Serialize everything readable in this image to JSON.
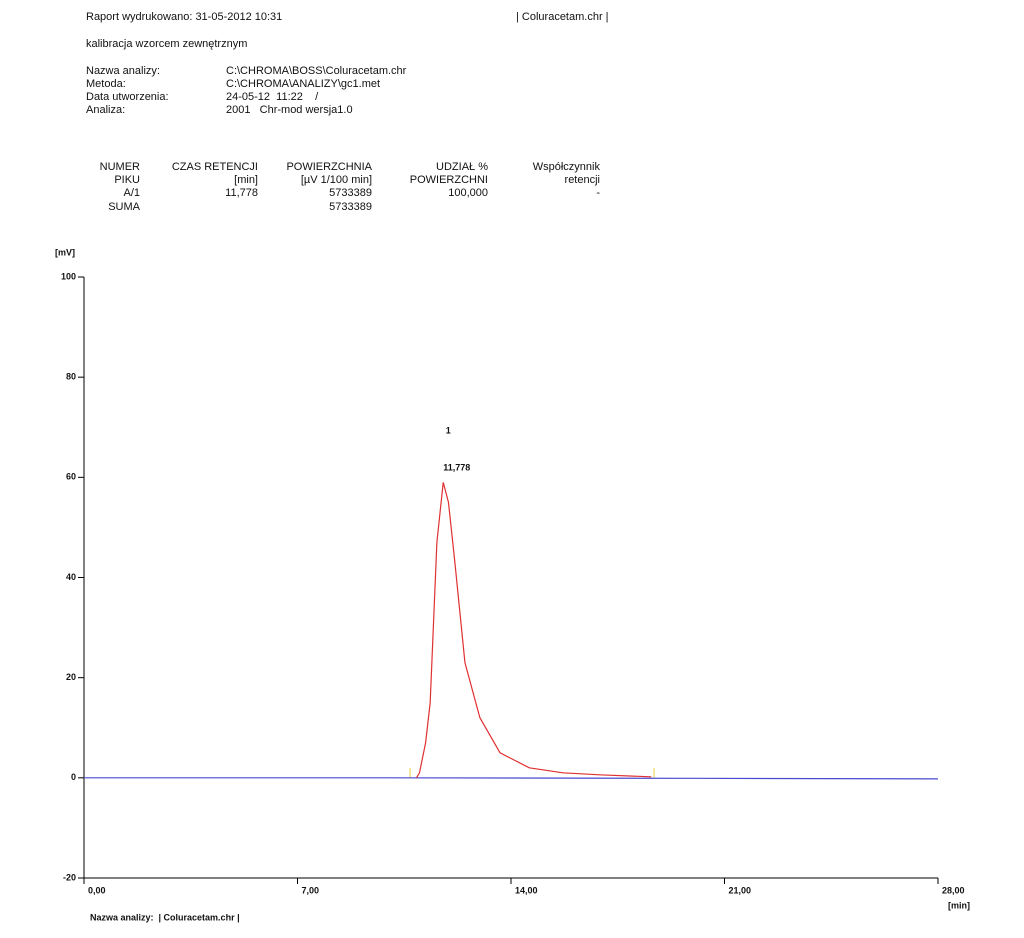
{
  "header": {
    "printed": "Raport wydrukowano: 31-05-2012 10:31",
    "file": "| Coluracetam.chr |",
    "calibration": "kalibracja wzorcem zewnętrznym",
    "info": [
      [
        "Nazwa analizy:",
        "C:\\CHROMA\\BOSS\\Coluracetam.chr"
      ],
      [
        "Metoda:",
        "C:\\CHROMA\\ANALIZY\\gc1.met"
      ],
      [
        "Data utworzenia:",
        "24-05-12  11:22    /"
      ],
      [
        "Analiza:",
        "2001   Chr-mod wersja1.0"
      ]
    ]
  },
  "table": {
    "header": [
      [
        "NUMER",
        "PIKU"
      ],
      [
        "CZAS RETENCJI",
        "[min]"
      ],
      [
        "POWIERZCHNIA",
        "[µV 1/100 min]"
      ],
      [
        "UDZIAŁ %",
        "POWIERZCHNI"
      ],
      [
        "Współczynnik",
        "retencji"
      ]
    ],
    "rows": [
      [
        "A/1",
        "11,778",
        "5733389",
        "100,000",
        "-"
      ],
      [
        "SUMA",
        null,
        "5733389",
        null,
        null
      ]
    ]
  },
  "chart_data": {
    "type": "line",
    "y_label": "[mV]",
    "x_label": "[min]",
    "xlim": [
      0,
      28
    ],
    "xticks": [
      {
        "value": 0,
        "label": "0,00"
      },
      {
        "value": 7,
        "label": "7,00"
      },
      {
        "value": 14,
        "label": "14,00"
      },
      {
        "value": 21,
        "label": "21,00"
      },
      {
        "value": 28,
        "label": "28,00"
      }
    ],
    "ylim": [
      -20,
      100
    ],
    "yticks": [
      -20,
      0,
      20,
      40,
      60,
      80,
      100
    ],
    "series": [
      {
        "color": "#4a4ad0",
        "x": [
          0,
          10,
          20,
          28
        ],
        "values": [
          0,
          0,
          -0.1,
          -0.2
        ]
      },
      {
        "color": "#e03030",
        "x": [
          10.9,
          11.0,
          11.2,
          11.35,
          11.57,
          11.778,
          11.95,
          12.16,
          12.49,
          12.98,
          13.64,
          14.6,
          15.7,
          16.9,
          18.6
        ],
        "values": [
          0,
          1,
          7,
          15,
          47,
          59,
          55,
          43,
          23,
          12,
          5,
          2,
          1,
          0.6,
          0.2
        ]
      }
    ],
    "peak_markers": [
      10.69,
      18.69
    ],
    "peak_marker_color": "#e8d040",
    "annotations": [
      {
        "label": "1",
        "x": 11.778,
        "color": "#f07040"
      },
      {
        "label": "11,778",
        "x": 11.778,
        "color": "#108890"
      }
    ],
    "footer": "Nazwa analizy:  | Coluracetam.chr |"
  }
}
